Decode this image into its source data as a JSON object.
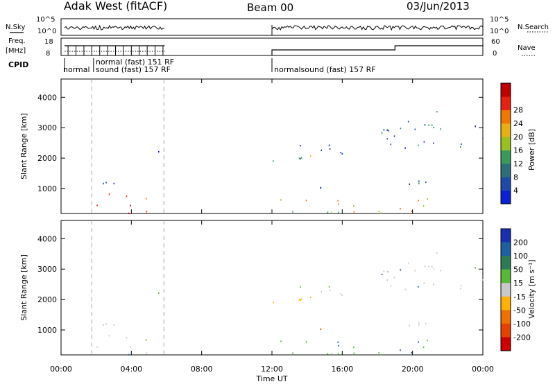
{
  "header": {
    "station": "Adak West (fitACF)",
    "beam": "Beam 00",
    "date": "03/Jun/2013"
  },
  "summary": {
    "nsky_label": "N.Sky",
    "nsky_ticks": [
      "10^5",
      "10^0"
    ],
    "nsearch_label": "N.Search",
    "freq_label": "Freq.",
    "freq_unit": "[MHz]",
    "freq_ticks": [
      "18",
      "8"
    ],
    "nave_label": "Nave",
    "nave_ticks": [
      "60",
      "0"
    ],
    "cpid_label": "CPID",
    "cpid_segments": [
      {
        "text": "normal",
        "time_h": 0.0,
        "row": 2
      },
      {
        "text": "sound (fast) 157 RF",
        "time_h": 1.85,
        "row": 2
      },
      {
        "text": "normal (fast) 151 RF",
        "time_h": 1.85,
        "row": 1
      },
      {
        "text": "normalsound (fast) 157 RF",
        "time_h": 12.0,
        "row": 2
      }
    ]
  },
  "chart_data": [
    {
      "type": "heatmap",
      "title": "",
      "xlabel": "",
      "ylabel": "Slant Range [km]",
      "xlim_hours": [
        0,
        24
      ],
      "ylim_km": [
        180,
        4600
      ],
      "yticks": [
        "1000",
        "2000",
        "3000",
        "4000"
      ],
      "colorbar": {
        "label": "Power [dB]",
        "ticks": [
          "4",
          "8",
          "12",
          "16",
          "20",
          "24",
          "28"
        ]
      },
      "vertical_dashed_lines_h": [
        1.75,
        5.85
      ],
      "data_intervals_h": [
        [
          0.2,
          5.9
        ],
        [
          12.0,
          24.0
        ]
      ]
    },
    {
      "type": "heatmap",
      "title": "",
      "xlabel": "Time UT",
      "ylabel": "Slant Range [km]",
      "xlim_hours": [
        0,
        24
      ],
      "ylim_km": [
        180,
        4600
      ],
      "yticks": [
        "1000",
        "2000",
        "3000",
        "4000"
      ],
      "xticks": [
        "00:00",
        "04:00",
        "08:00",
        "12:00",
        "16:00",
        "20:00",
        "00:00"
      ],
      "colorbar": {
        "label": "Velocity [m s⁻¹]",
        "ticks": [
          "200",
          "100",
          "50",
          "15",
          "-15",
          "-50",
          "-100",
          "-200"
        ]
      },
      "vertical_dashed_lines_h": [
        1.75,
        5.85
      ],
      "data_intervals_h": [
        [
          0.2,
          5.9
        ],
        [
          12.0,
          24.0
        ]
      ]
    }
  ],
  "colors": {
    "power": [
      "#0a1fd6",
      "#1f4aa8",
      "#2e6e7a",
      "#3a9a5a",
      "#9ac020",
      "#e6b010",
      "#f07800",
      "#e82010",
      "#c00000"
    ],
    "velocity": [
      "#1830b0",
      "#1d5fa0",
      "#2d7a55",
      "#58b838",
      "#c8c8c8",
      "#ffb000",
      "#f07000",
      "#e84000",
      "#d00000"
    ]
  }
}
